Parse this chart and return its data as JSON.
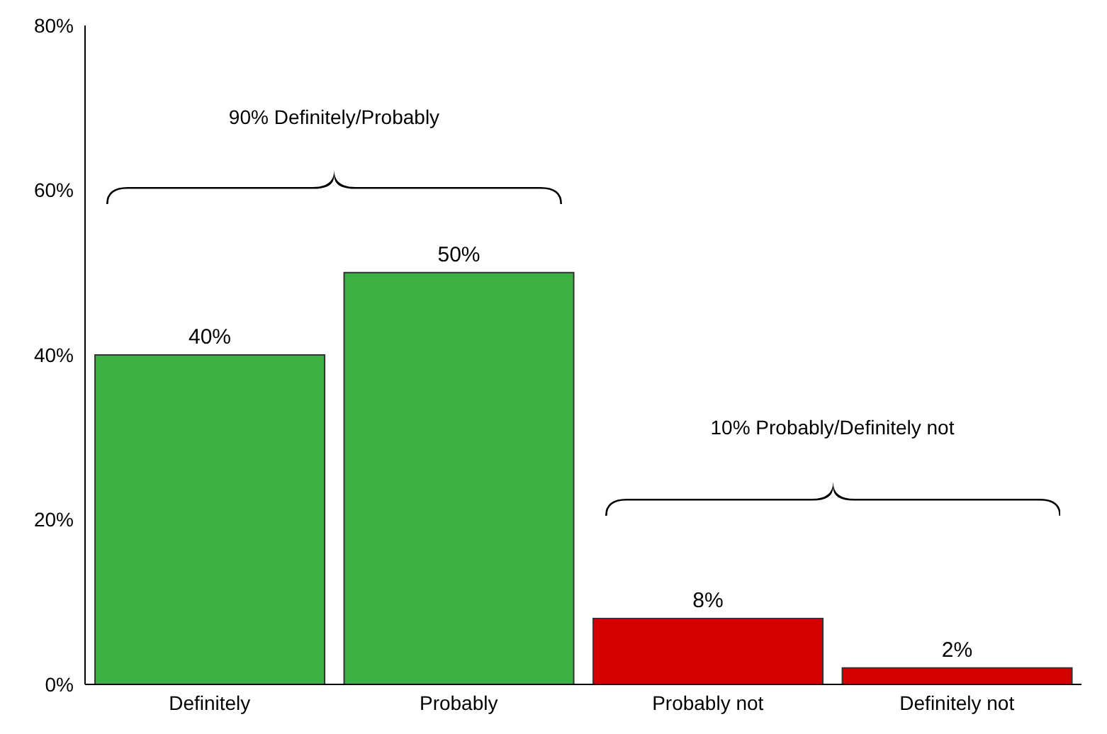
{
  "chart_data": {
    "type": "bar",
    "categories": [
      "Definitely",
      "Probably",
      "Probably not",
      "Definitely not"
    ],
    "values": [
      40,
      50,
      8,
      2
    ],
    "colors": [
      "#3cb043",
      "#3cb043",
      "#d40000",
      "#d40000"
    ],
    "ylim": [
      0,
      80
    ],
    "yticks": [
      {
        "value": 0,
        "label": "0%"
      },
      {
        "value": 20,
        "label": "20%"
      },
      {
        "value": 40,
        "label": "40%"
      },
      {
        "value": 60,
        "label": "60%"
      },
      {
        "value": 80,
        "label": "80%"
      }
    ],
    "value_labels": [
      "40%",
      "50%",
      "8%",
      "2%"
    ],
    "annotations": [
      "90% Definitely/Probably",
      "10% Probably/Definitely not"
    ]
  }
}
